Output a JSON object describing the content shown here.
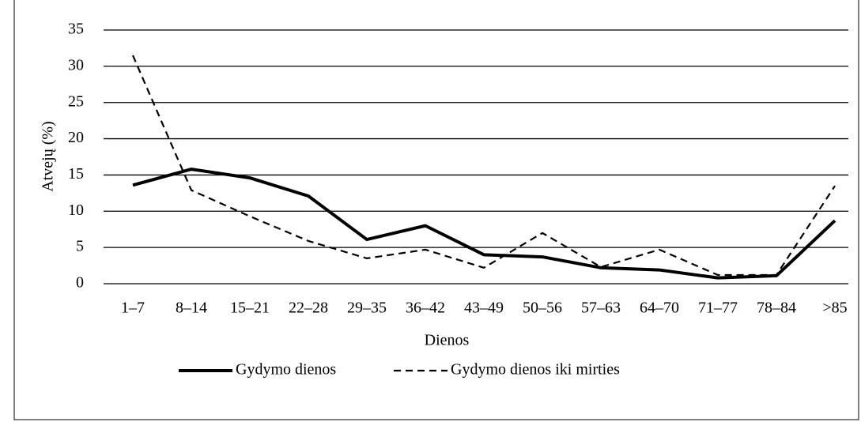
{
  "chart_data": {
    "type": "line",
    "categories": [
      "1–7",
      "8–14",
      "15–21",
      "22–28",
      "29–35",
      "36–42",
      "43–49",
      "50–56",
      "57–63",
      "64–70",
      "71–77",
      "78–84",
      ">85"
    ],
    "series": [
      {
        "name": "Gydymo dienos",
        "color": "#000000",
        "dash": "solid",
        "values": [
          13.6,
          15.8,
          14.6,
          12.1,
          6.1,
          8,
          4,
          3.7,
          2.2,
          1.9,
          0.8,
          1.1,
          8.7
        ]
      },
      {
        "name": "Gydymo dienos iki mirties",
        "color": "#000000",
        "dash": "dashed",
        "values": [
          31.5,
          12.9,
          9.3,
          5.9,
          3.5,
          4.7,
          2.2,
          7,
          2.3,
          4.7,
          1.2,
          1.2,
          13.5
        ]
      }
    ],
    "xlabel": "Dienos",
    "ylabel": "Atvejų (%)",
    "ylim": [
      0,
      35
    ],
    "yticks": [
      0,
      5,
      10,
      15,
      20,
      25,
      30,
      35
    ],
    "grid": true,
    "legend": "bottom"
  }
}
